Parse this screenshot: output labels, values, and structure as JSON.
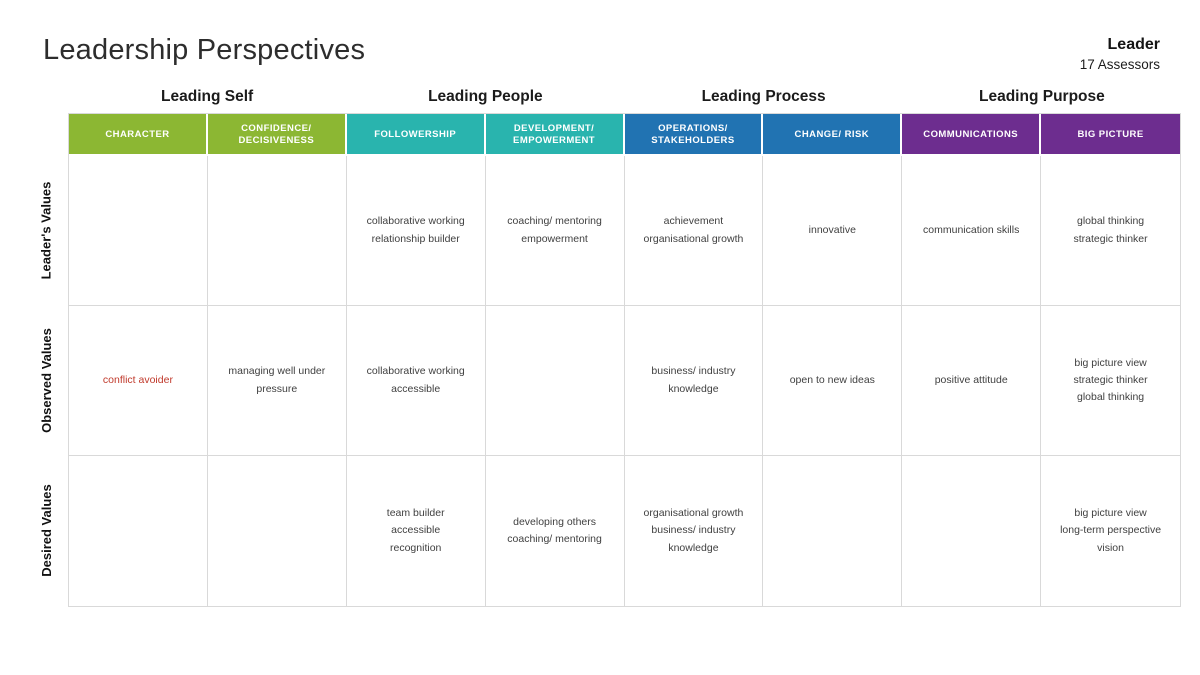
{
  "title": "Leadership Perspectives",
  "header_right": {
    "title": "Leader",
    "subtitle": "17 Assessors"
  },
  "groups": [
    "Leading Self",
    "Leading People",
    "Leading Process",
    "Leading Purpose"
  ],
  "colors": {
    "green": "#8cb733",
    "teal": "#29b4ae",
    "blue": "#2173b2",
    "purple": "#6d2d8f",
    "grid_line": "#d9d9d9",
    "header_text": "#ffffff",
    "cell_text": "#404040",
    "highlight_text": "#c0392b"
  },
  "table": {
    "columns": [
      {
        "label": "CHARACTER",
        "color_key": "green"
      },
      {
        "label": "CONFIDENCE/ DECISIVENESS",
        "color_key": "green"
      },
      {
        "label": "FOLLOWERSHIP",
        "color_key": "teal"
      },
      {
        "label": "DEVELOPMENT/ EMPOWERMENT",
        "color_key": "teal"
      },
      {
        "label": "OPERATIONS/ STAKEHOLDERS",
        "color_key": "blue"
      },
      {
        "label": "CHANGE/ RISK",
        "color_key": "blue"
      },
      {
        "label": "COMMUNICATIONS",
        "color_key": "purple"
      },
      {
        "label": "BIG PICTURE",
        "color_key": "purple"
      }
    ],
    "rows": [
      {
        "label": "Leader's Values",
        "cells": [
          {
            "lines": []
          },
          {
            "lines": []
          },
          {
            "lines": [
              "collaborative working",
              "relationship builder"
            ]
          },
          {
            "lines": [
              "coaching/ mentoring",
              "empowerment"
            ]
          },
          {
            "lines": [
              "achievement",
              "organisational growth"
            ]
          },
          {
            "lines": [
              "innovative"
            ]
          },
          {
            "lines": [
              "communication skills"
            ]
          },
          {
            "lines": [
              "global thinking",
              "strategic thinker"
            ]
          }
        ]
      },
      {
        "label": "Observed Values",
        "cells": [
          {
            "lines": [
              "conflict avoider"
            ],
            "text_color": "#c0392b"
          },
          {
            "lines": [
              "managing well under pressure"
            ]
          },
          {
            "lines": [
              "collaborative working",
              "accessible"
            ]
          },
          {
            "lines": []
          },
          {
            "lines": [
              "business/ industry knowledge"
            ]
          },
          {
            "lines": [
              "open to new ideas"
            ]
          },
          {
            "lines": [
              "positive attitude"
            ]
          },
          {
            "lines": [
              "big picture view",
              "strategic thinker",
              "global thinking"
            ]
          }
        ]
      },
      {
        "label": "Desired Values",
        "cells": [
          {
            "lines": []
          },
          {
            "lines": []
          },
          {
            "lines": [
              "team builder",
              "accessible",
              "recognition"
            ]
          },
          {
            "lines": [
              "developing others",
              "coaching/ mentoring"
            ]
          },
          {
            "lines": [
              "organisational growth",
              "business/ industry knowledge"
            ]
          },
          {
            "lines": []
          },
          {
            "lines": []
          },
          {
            "lines": [
              "big picture view",
              "long-term perspective",
              "vision"
            ]
          }
        ]
      }
    ]
  }
}
